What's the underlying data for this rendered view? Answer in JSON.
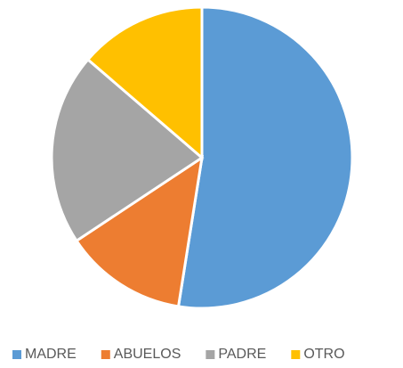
{
  "chart_data": {
    "type": "pie",
    "categories": [
      "MADRE",
      "ABUELOS",
      "PADRE",
      "OTRO"
    ],
    "values": [
      52.5,
      13.2,
      20.6,
      13.7
    ],
    "colors": [
      "#5b9bd5",
      "#ed7d31",
      "#a5a5a5",
      "#ffc000"
    ],
    "legend": "bottom"
  }
}
